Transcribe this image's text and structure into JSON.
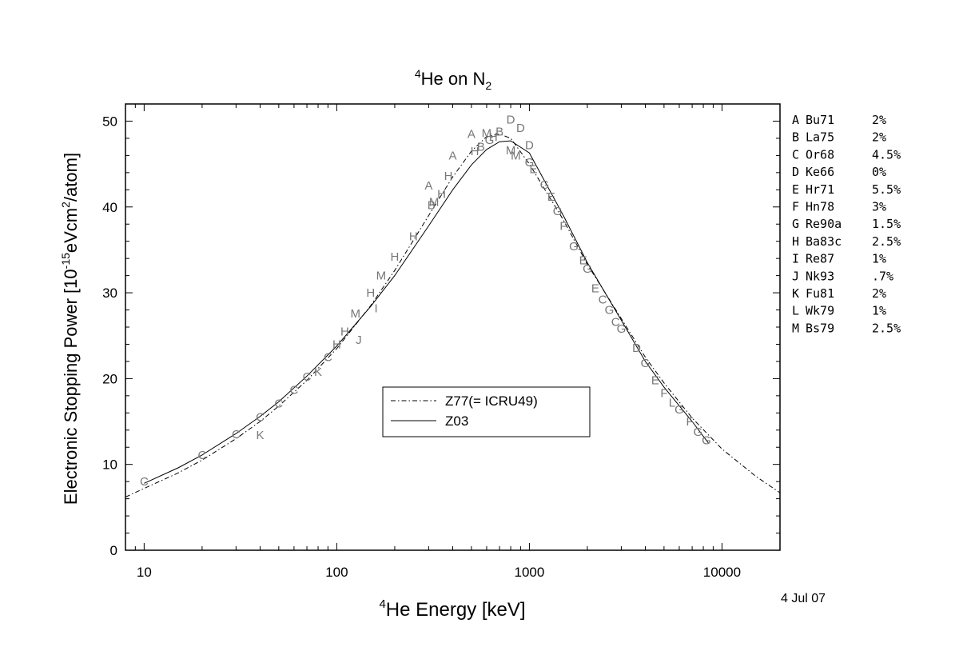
{
  "chart_data": {
    "type": "scatter",
    "title": {
      "sup": "4",
      "base": "He on N",
      "sub": "2"
    },
    "xlabel": {
      "sup": "4",
      "base": "He Energy [keV]"
    },
    "ylabel": {
      "pre": "Electronic Stopping Power [10",
      "sup1": "-15",
      "mid": "eVcm",
      "sup2": "2",
      "post": "/atom]"
    },
    "x_scale": "log",
    "xlim": [
      8,
      20000
    ],
    "ylim": [
      0,
      52
    ],
    "x_ticks": [
      {
        "value": 10,
        "label": "10"
      },
      {
        "value": 100,
        "label": "100"
      },
      {
        "value": 1000,
        "label": "1000"
      },
      {
        "value": 10000,
        "label": "10000"
      }
    ],
    "y_ticks": [
      {
        "value": 0,
        "label": "0"
      },
      {
        "value": 10,
        "label": "10"
      },
      {
        "value": 20,
        "label": "20"
      },
      {
        "value": 30,
        "label": "30"
      },
      {
        "value": 40,
        "label": "40"
      },
      {
        "value": 50,
        "label": "50"
      }
    ],
    "grid": false,
    "date_label": "4 Jul 07",
    "curves": [
      {
        "name": "Z77(= ICRU49)",
        "style": "dash-dot",
        "x": [
          8,
          10,
          15,
          20,
          30,
          40,
          50,
          70,
          100,
          150,
          200,
          300,
          400,
          500,
          600,
          700,
          800,
          1000,
          1500,
          2000,
          3000,
          4000,
          5000,
          7000,
          10000,
          15000,
          20000
        ],
        "y": [
          6.2,
          7.2,
          9.0,
          10.5,
          13.0,
          15.0,
          16.8,
          19.8,
          23.5,
          28.5,
          32.6,
          39.0,
          43.5,
          46.5,
          48.2,
          48.5,
          48.0,
          45.0,
          38.5,
          33.3,
          27.0,
          22.5,
          19.5,
          15.4,
          11.8,
          8.6,
          6.7
        ]
      },
      {
        "name": "Z03",
        "style": "solid",
        "x": [
          10,
          15,
          20,
          30,
          40,
          50,
          70,
          100,
          150,
          200,
          300,
          400,
          500,
          600,
          700,
          800,
          1000,
          1500,
          2000,
          3000,
          4000,
          5000,
          7000,
          8500
        ],
        "y": [
          7.8,
          9.6,
          11.1,
          13.6,
          15.6,
          17.3,
          20.3,
          23.8,
          28.4,
          32.0,
          37.8,
          42.0,
          44.9,
          46.7,
          47.6,
          47.7,
          46.3,
          39.0,
          33.5,
          26.8,
          22.0,
          19.0,
          15.0,
          12.5
        ]
      }
    ],
    "data_points": [
      {
        "letter": "C",
        "x": 10,
        "y": 8.0
      },
      {
        "letter": "C",
        "x": 20,
        "y": 11.1
      },
      {
        "letter": "C",
        "x": 30,
        "y": 13.5
      },
      {
        "letter": "C",
        "x": 40,
        "y": 15.5
      },
      {
        "letter": "C",
        "x": 50,
        "y": 17.1
      },
      {
        "letter": "C",
        "x": 60,
        "y": 18.7
      },
      {
        "letter": "C",
        "x": 70,
        "y": 20.2
      },
      {
        "letter": "C",
        "x": 90,
        "y": 22.5
      },
      {
        "letter": "K",
        "x": 40,
        "y": 13.4
      },
      {
        "letter": "K",
        "x": 80,
        "y": 20.8
      },
      {
        "letter": "H",
        "x": 100,
        "y": 24.0
      },
      {
        "letter": "H",
        "x": 110,
        "y": 25.5
      },
      {
        "letter": "J",
        "x": 130,
        "y": 24.5
      },
      {
        "letter": "M",
        "x": 125,
        "y": 27.6
      },
      {
        "letter": "I",
        "x": 160,
        "y": 28.2
      },
      {
        "letter": "H",
        "x": 150,
        "y": 30.0
      },
      {
        "letter": "M",
        "x": 170,
        "y": 32.0
      },
      {
        "letter": "H",
        "x": 200,
        "y": 34.2
      },
      {
        "letter": "H",
        "x": 250,
        "y": 36.6
      },
      {
        "letter": "A",
        "x": 300,
        "y": 42.5
      },
      {
        "letter": "B",
        "x": 310,
        "y": 40.2
      },
      {
        "letter": "M",
        "x": 320,
        "y": 40.6
      },
      {
        "letter": "H",
        "x": 350,
        "y": 41.5
      },
      {
        "letter": "H",
        "x": 380,
        "y": 43.6
      },
      {
        "letter": "A",
        "x": 400,
        "y": 46.0
      },
      {
        "letter": "A",
        "x": 500,
        "y": 48.5
      },
      {
        "letter": "H",
        "x": 520,
        "y": 46.5
      },
      {
        "letter": "B",
        "x": 560,
        "y": 47.0
      },
      {
        "letter": "M",
        "x": 600,
        "y": 48.6
      },
      {
        "letter": "G",
        "x": 620,
        "y": 47.8
      },
      {
        "letter": "H",
        "x": 650,
        "y": 48.2
      },
      {
        "letter": "B",
        "x": 700,
        "y": 48.8
      },
      {
        "letter": "D",
        "x": 800,
        "y": 50.2
      },
      {
        "letter": "D",
        "x": 900,
        "y": 49.2
      },
      {
        "letter": "M",
        "x": 800,
        "y": 46.6
      },
      {
        "letter": "D",
        "x": 1000,
        "y": 47.2
      },
      {
        "letter": "M",
        "x": 850,
        "y": 46.0
      },
      {
        "letter": "G",
        "x": 1000,
        "y": 45.2
      },
      {
        "letter": "E",
        "x": 1050,
        "y": 44.4
      },
      {
        "letter": "G",
        "x": 1200,
        "y": 42.6
      },
      {
        "letter": "E",
        "x": 1300,
        "y": 41.2
      },
      {
        "letter": "G",
        "x": 1400,
        "y": 39.5
      },
      {
        "letter": "F",
        "x": 1500,
        "y": 37.8
      },
      {
        "letter": "G",
        "x": 1700,
        "y": 35.4
      },
      {
        "letter": "E",
        "x": 1900,
        "y": 33.8
      },
      {
        "letter": "G",
        "x": 2000,
        "y": 32.8
      },
      {
        "letter": "E",
        "x": 2200,
        "y": 30.5
      },
      {
        "letter": "C",
        "x": 2400,
        "y": 29.2
      },
      {
        "letter": "G",
        "x": 2600,
        "y": 28.0
      },
      {
        "letter": "C",
        "x": 2800,
        "y": 26.6
      },
      {
        "letter": "G",
        "x": 3000,
        "y": 25.8
      },
      {
        "letter": "D",
        "x": 3600,
        "y": 23.6
      },
      {
        "letter": "G",
        "x": 4000,
        "y": 21.8
      },
      {
        "letter": "E",
        "x": 4500,
        "y": 19.8
      },
      {
        "letter": "F",
        "x": 5000,
        "y": 18.3
      },
      {
        "letter": "L",
        "x": 5500,
        "y": 17.2
      },
      {
        "letter": "G",
        "x": 6000,
        "y": 16.4
      },
      {
        "letter": "F",
        "x": 6800,
        "y": 15.0
      },
      {
        "letter": "G",
        "x": 7500,
        "y": 13.8
      },
      {
        "letter": "G",
        "x": 8300,
        "y": 12.8
      }
    ],
    "legend_box": {
      "placement": "center",
      "entries": [
        {
          "label": "Z77(= ICRU49)",
          "style": "dash-dot"
        },
        {
          "label": "Z03",
          "style": "solid"
        }
      ]
    },
    "references": [
      {
        "letter": "A",
        "code": "Bu71",
        "value": "2%"
      },
      {
        "letter": "B",
        "code": "La75",
        "value": "2%"
      },
      {
        "letter": "C",
        "code": "Or68",
        "value": "4.5%"
      },
      {
        "letter": "D",
        "code": "Ke66",
        "value": "0%"
      },
      {
        "letter": "E",
        "code": "Hr71",
        "value": "5.5%"
      },
      {
        "letter": "F",
        "code": "Hn78",
        "value": "3%"
      },
      {
        "letter": "G",
        "code": "Re90a",
        "value": "1.5%"
      },
      {
        "letter": "H",
        "code": "Ba83c",
        "value": "2.5%"
      },
      {
        "letter": "I",
        "code": "Re87",
        "value": "1%"
      },
      {
        "letter": "J",
        "code": "Nk93",
        "value": ".7%"
      },
      {
        "letter": "K",
        "code": "Fu81",
        "value": "2%"
      },
      {
        "letter": "L",
        "code": "Wk79",
        "value": "1%"
      },
      {
        "letter": "M",
        "code": "Bs79",
        "value": "2.5%"
      }
    ]
  }
}
